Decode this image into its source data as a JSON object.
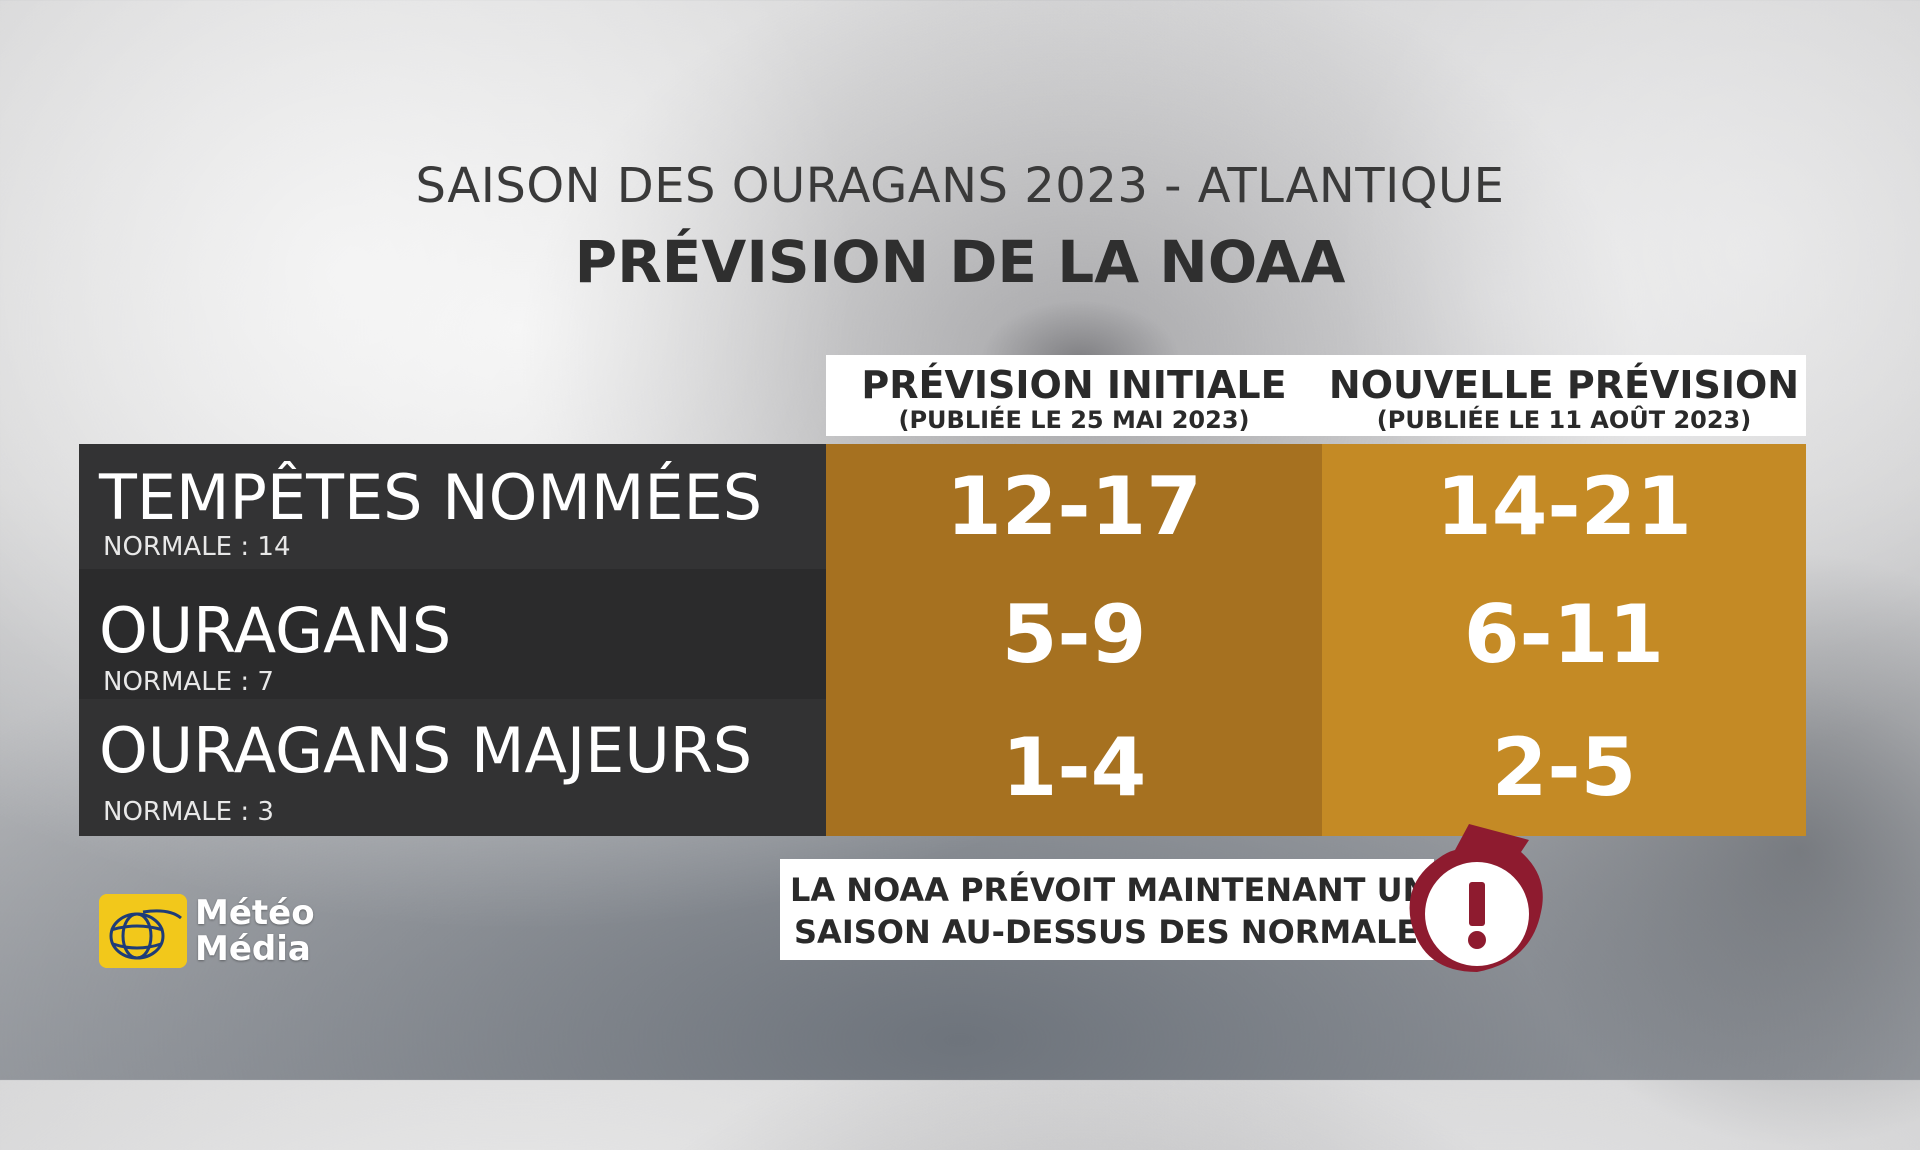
{
  "header": {
    "title": "SAISON DES OURAGANS 2023 - ATLANTIQUE",
    "subtitle": "PRÉVISION DE LA NOAA"
  },
  "columns": [
    {
      "label": "PRÉVISION INITIALE",
      "sublabel": "(PUBLIÉE LE 25 MAI 2023)"
    },
    {
      "label": "NOUVELLE PRÉVISION",
      "sublabel": "(PUBLIÉE LE 11 AOÛT 2023)"
    }
  ],
  "rows": [
    {
      "label": "TEMPÊTES NOMMÉES",
      "normal": "NORMALE : 14",
      "initial": "12-17",
      "new": "14-21"
    },
    {
      "label": "OURAGANS",
      "normal": "NORMALE : 7",
      "initial": "5-9",
      "new": "6-11"
    },
    {
      "label": "OURAGANS MAJEURS",
      "normal": "NORMALE : 3",
      "initial": "1-4",
      "new": "2-5"
    }
  ],
  "note": {
    "line1": "LA NOAA PRÉVOIT MAINTENANT UNE",
    "line2": "SAISON AU-DESSUS DES NORMALES",
    "icon": "exclamation-icon"
  },
  "logo": {
    "word1": "Météo",
    "word2": "Média"
  },
  "colors": {
    "initial_cell": "#a67120",
    "new_cell": "#c48a25",
    "label_cell": "#2e2e2f",
    "alert_red": "#8e1b2f"
  }
}
